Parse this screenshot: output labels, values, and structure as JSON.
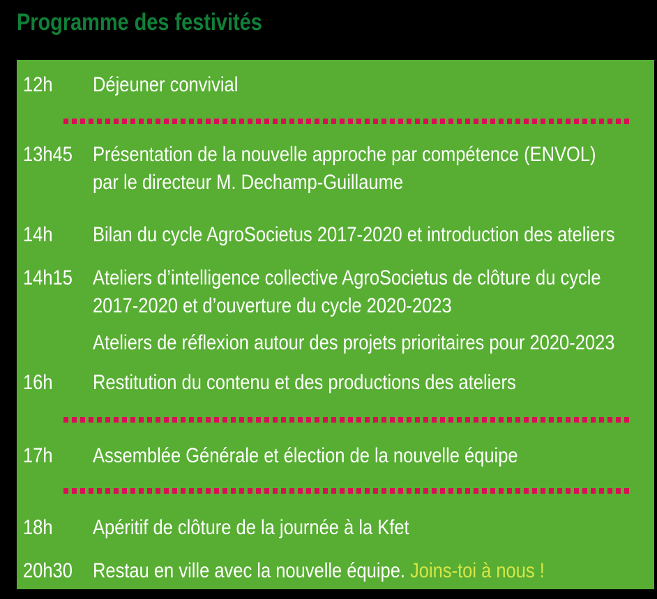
{
  "title": {
    "text": "Programme des festivités"
  },
  "colors": {
    "background": "#000000",
    "title_green": "#108038",
    "panel_green": "#57ae32",
    "text_white": "#ffffff",
    "separator_pink": "#d90e57",
    "highlight_yellow": "#d7e647"
  },
  "schedule": {
    "rows": [
      {
        "time": "12h",
        "line1": "Déjeuner convivial"
      },
      {
        "time": "13h45",
        "line1": "Présentation de la nouvelle approche par compétence (ENVOL)",
        "line2": "par le directeur M. Dechamp-Guillaume"
      },
      {
        "time": "14h",
        "line1": "Bilan du cycle AgroSocietus 2017-2020 et introduction des ateliers"
      },
      {
        "time": "14h15",
        "line1": "Ateliers d’intelligence collective AgroSocietus de clôture du cycle",
        "line2": "2017-2020 et d’ouverture du cycle 2020-2023"
      },
      {
        "time": "",
        "line1": "Ateliers de réflexion autour des projets prioritaires pour 2020-2023"
      },
      {
        "time": "16h",
        "line1": "Restitution du contenu et des productions des ateliers"
      },
      {
        "time": "17h",
        "line1": "Assemblée Générale et élection de la nouvelle équipe"
      },
      {
        "time": "18h",
        "line1": "Apéritif de clôture de la journée à la Kfet"
      },
      {
        "time": "20h30",
        "line1": "Restau en ville avec la nouvelle équipe. ",
        "highlight": "Joins-toi à nous !"
      }
    ]
  }
}
